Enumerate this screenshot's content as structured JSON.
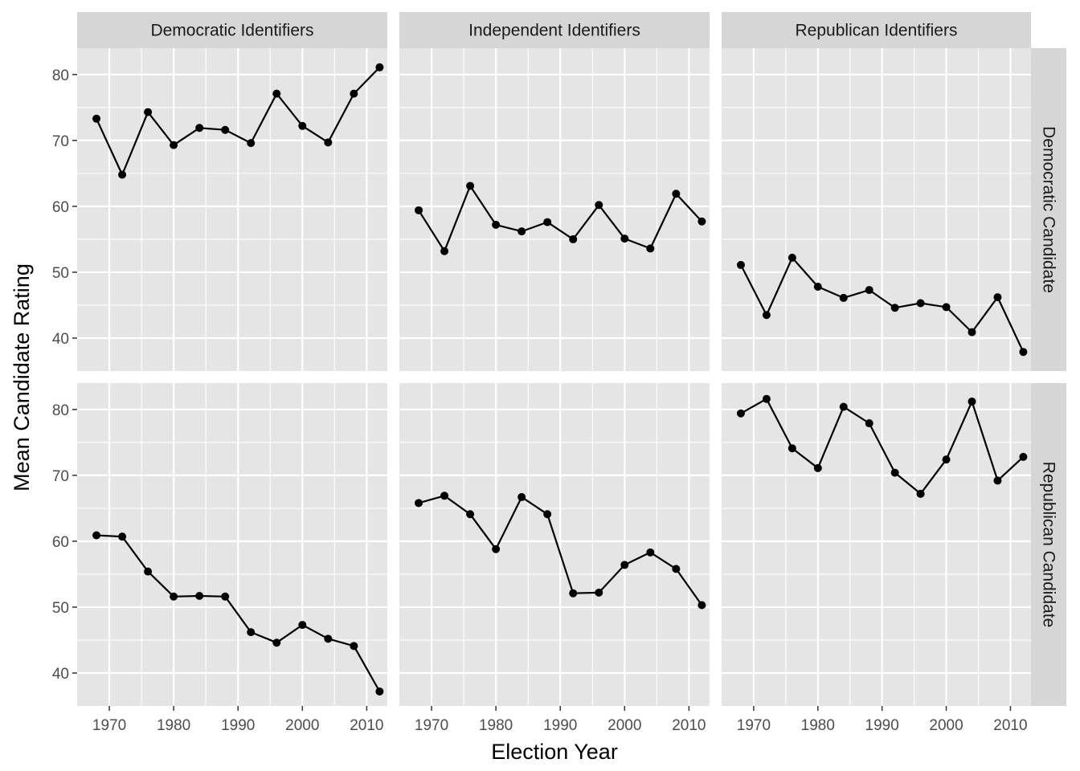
{
  "chart_data": {
    "type": "line",
    "xlabel": "Election Year",
    "ylabel": "Mean Candidate Rating",
    "columns": [
      "Democratic Identifiers",
      "Independent Identifiers",
      "Republican Identifiers"
    ],
    "rows": [
      "Democratic Candidate",
      "Republican Candidate"
    ],
    "x": [
      1968,
      1972,
      1976,
      1980,
      1984,
      1988,
      1992,
      1996,
      2000,
      2004,
      2008,
      2012
    ],
    "xlim": [
      1965,
      2013.2
    ],
    "ylim": [
      35,
      84
    ],
    "xticks": [
      1970,
      1980,
      1990,
      2000,
      2010
    ],
    "yticks": [
      40,
      50,
      60,
      70,
      80
    ],
    "grid": true,
    "legend": "none",
    "panels": [
      {
        "row": "Democratic Candidate",
        "column": "Democratic Identifiers",
        "values": [
          73.3,
          64.8,
          74.3,
          69.3,
          71.9,
          71.6,
          69.6,
          77.1,
          72.2,
          69.7,
          77.1,
          81.1
        ]
      },
      {
        "row": "Democratic Candidate",
        "column": "Independent Identifiers",
        "values": [
          59.4,
          53.2,
          63.1,
          57.2,
          56.2,
          57.6,
          55.0,
          60.2,
          55.1,
          53.6,
          61.9,
          57.7
        ]
      },
      {
        "row": "Democratic Candidate",
        "column": "Republican Identifiers",
        "values": [
          51.1,
          43.5,
          52.2,
          47.8,
          46.1,
          47.3,
          44.6,
          45.3,
          44.7,
          40.9,
          46.2,
          37.9
        ]
      },
      {
        "row": "Republican Candidate",
        "column": "Democratic Identifiers",
        "values": [
          60.9,
          60.7,
          55.4,
          51.6,
          51.7,
          51.6,
          46.2,
          44.6,
          47.3,
          45.2,
          44.1,
          37.2
        ]
      },
      {
        "row": "Republican Candidate",
        "column": "Independent Identifiers",
        "values": [
          65.8,
          66.9,
          64.1,
          58.8,
          66.7,
          64.1,
          52.1,
          52.2,
          56.4,
          58.3,
          55.8,
          50.3
        ]
      },
      {
        "row": "Republican Candidate",
        "column": "Republican Identifiers",
        "values": [
          79.4,
          81.6,
          74.1,
          71.1,
          80.4,
          77.9,
          70.4,
          67.2,
          72.4,
          81.2,
          69.2,
          72.8
        ]
      }
    ]
  },
  "colors": {
    "panel_background": "#e5e5e5",
    "strip_background": "#d6d6d6",
    "grid": "#ffffff",
    "line": "#000000",
    "tick_text": "#4d4d4d"
  }
}
